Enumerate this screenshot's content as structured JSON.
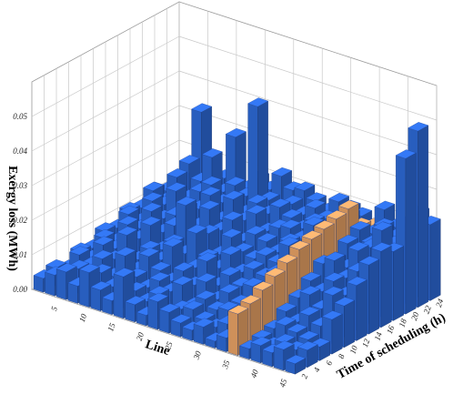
{
  "chart_data": {
    "type": "bar3d",
    "xlabel": "Line",
    "ylabel": "Time of scheduling (h)",
    "zlabel": "Exergy loss (MWh)",
    "x": [
      1,
      3,
      5,
      7,
      9,
      11,
      13,
      15,
      17,
      19,
      21,
      23,
      25,
      27,
      29,
      31,
      33,
      35,
      37,
      39,
      41,
      43,
      45
    ],
    "y": [
      1,
      3,
      5,
      7,
      9,
      11,
      13,
      15,
      17,
      19,
      21,
      23
    ],
    "values": [
      [
        0.004,
        0.006,
        0.008,
        0.005,
        0.01,
        0.006,
        0.004,
        0.012,
        0.005,
        0.003,
        0.008,
        0.006,
        0.004,
        0.003,
        0.005,
        0.002,
        0.004,
        0.012,
        0.003,
        0.005,
        0.004,
        0.006,
        0.003
      ],
      [
        0.005,
        0.004,
        0.007,
        0.006,
        0.008,
        0.005,
        0.009,
        0.006,
        0.004,
        0.007,
        0.003,
        0.005,
        0.006,
        0.004,
        0.003,
        0.005,
        0.004,
        0.013,
        0.004,
        0.003,
        0.005,
        0.004,
        0.005
      ],
      [
        0.003,
        0.008,
        0.006,
        0.009,
        0.005,
        0.012,
        0.007,
        0.005,
        0.008,
        0.006,
        0.009,
        0.004,
        0.007,
        0.005,
        0.006,
        0.004,
        0.006,
        0.015,
        0.005,
        0.007,
        0.006,
        0.005,
        0.004
      ],
      [
        0.006,
        0.005,
        0.01,
        0.007,
        0.009,
        0.006,
        0.011,
        0.008,
        0.006,
        0.01,
        0.007,
        0.009,
        0.005,
        0.008,
        0.006,
        0.007,
        0.005,
        0.017,
        0.008,
        0.006,
        0.009,
        0.007,
        0.01
      ],
      [
        0.005,
        0.009,
        0.007,
        0.012,
        0.006,
        0.01,
        0.008,
        0.013,
        0.007,
        0.009,
        0.012,
        0.006,
        0.01,
        0.008,
        0.009,
        0.006,
        0.008,
        0.019,
        0.01,
        0.012,
        0.009,
        0.014,
        0.012
      ],
      [
        0.008,
        0.006,
        0.012,
        0.009,
        0.014,
        0.008,
        0.011,
        0.009,
        0.016,
        0.01,
        0.008,
        0.013,
        0.009,
        0.011,
        0.01,
        0.012,
        0.009,
        0.021,
        0.013,
        0.011,
        0.015,
        0.012,
        0.016
      ],
      [
        0.007,
        0.012,
        0.009,
        0.015,
        0.01,
        0.013,
        0.02,
        0.011,
        0.014,
        0.009,
        0.015,
        0.012,
        0.011,
        0.013,
        0.012,
        0.018,
        0.014,
        0.022,
        0.016,
        0.018,
        0.014,
        0.017,
        0.02
      ],
      [
        0.01,
        0.008,
        0.015,
        0.011,
        0.013,
        0.016,
        0.012,
        0.018,
        0.013,
        0.017,
        0.012,
        0.015,
        0.014,
        0.012,
        0.016,
        0.014,
        0.017,
        0.023,
        0.015,
        0.014,
        0.02,
        0.016,
        0.022
      ],
      [
        0.009,
        0.015,
        0.012,
        0.017,
        0.011,
        0.014,
        0.019,
        0.013,
        0.02,
        0.015,
        0.018,
        0.014,
        0.016,
        0.017,
        0.015,
        0.02,
        0.016,
        0.024,
        0.018,
        0.016,
        0.019,
        0.025,
        0.02
      ],
      [
        0.012,
        0.01,
        0.018,
        0.013,
        0.016,
        0.019,
        0.015,
        0.017,
        0.014,
        0.018,
        0.016,
        0.019,
        0.017,
        0.015,
        0.018,
        0.016,
        0.019,
        0.025,
        0.02,
        0.017,
        0.022,
        0.019,
        0.045
      ],
      [
        0.01,
        0.014,
        0.02,
        0.016,
        0.024,
        0.015,
        0.018,
        0.016,
        0.043,
        0.017,
        0.015,
        0.018,
        0.016,
        0.019,
        0.017,
        0.018,
        0.02,
        0.018,
        0.017,
        0.02,
        0.018,
        0.016,
        0.051
      ],
      [
        0.008,
        0.012,
        0.033,
        0.014,
        0.016,
        0.029,
        0.015,
        0.019,
        0.017,
        0.022,
        0.019,
        0.02,
        0.018,
        0.016,
        0.02,
        0.019,
        0.018,
        0.016,
        0.022,
        0.018,
        0.02,
        0.024,
        0.022
      ]
    ],
    "color": "#2f6ee0",
    "highlight": {
      "x": 35,
      "color": "#f2a96a"
    },
    "xlim": [
      0,
      45
    ],
    "ylim": [
      0,
      24
    ],
    "zlim": [
      0,
      0.06
    ],
    "xticks": [
      5,
      10,
      15,
      20,
      25,
      30,
      35,
      40,
      45
    ],
    "yticks": [
      2,
      4,
      6,
      8,
      10,
      12,
      14,
      16,
      18,
      20,
      22,
      24
    ],
    "zticks": [
      {
        "value": 0,
        "label": "0.00"
      },
      {
        "value": 0.01,
        "label": "0.01"
      },
      {
        "value": 0.02,
        "label": "0.02"
      },
      {
        "value": 0.03,
        "label": "0.03"
      },
      {
        "value": 0.04,
        "label": "0.04"
      },
      {
        "value": 0.05,
        "label": "0.05"
      }
    ],
    "grid": true
  }
}
